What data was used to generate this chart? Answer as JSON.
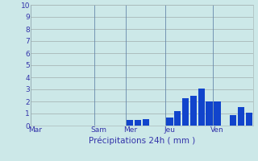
{
  "title": "",
  "xlabel": "Précipitations 24h ( mm )",
  "ylabel": "",
  "background_color": "#cce8e8",
  "bar_color": "#1144cc",
  "ylim": [
    0,
    10
  ],
  "yticks": [
    0,
    1,
    2,
    3,
    4,
    5,
    6,
    7,
    8,
    9,
    10
  ],
  "day_labels": [
    "Mar",
    "Sam",
    "Mer",
    "Jeu",
    "Ven"
  ],
  "day_tick_positions": [
    0,
    8,
    12,
    17,
    23
  ],
  "num_bars": 28,
  "bars": [
    0,
    0,
    0,
    0,
    0,
    0,
    0,
    0,
    0,
    0,
    0,
    0,
    0.5,
    0.5,
    0.55,
    0,
    0,
    0.65,
    1.2,
    2.3,
    2.5,
    3.1,
    2.0,
    2.0,
    0,
    0.9,
    1.55,
    1.1
  ],
  "grid_color": "#aabbbb",
  "tick_color": "#3333aa",
  "label_color": "#3333aa",
  "vline_color": "#6688aa",
  "vline_positions": [
    8,
    12,
    17,
    23
  ]
}
